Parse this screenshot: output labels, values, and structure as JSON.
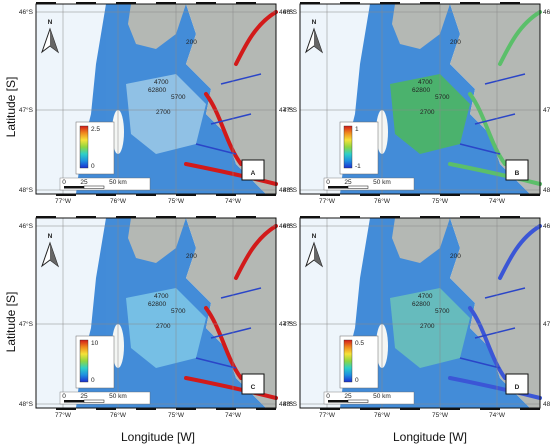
{
  "figure": {
    "y_axis_label": "Latitude [S]",
    "x_axis_label": "Longitude [W]"
  },
  "axes": {
    "lat_ticks": [
      "46°S",
      "47°S",
      "48°S"
    ],
    "lon_ticks": [
      "77°W",
      "76°W",
      "75°W",
      "74°W"
    ]
  },
  "north_arrow": "N",
  "scalebar": [
    "0",
    "25",
    "50 km"
  ],
  "contour_labels": [
    "200",
    "4700",
    "62800",
    "5700",
    "2700"
  ],
  "panels": [
    {
      "id": "A",
      "label": "A",
      "colorbar_max": "2.5",
      "colorbar_min": "0",
      "colormap": "jet",
      "colors": {
        "offshore": "#2f7fd4",
        "coast": "#9ecae8",
        "fjord": "#d21a1a"
      }
    },
    {
      "id": "B",
      "label": "B",
      "colorbar_max": "1",
      "colorbar_min": "-1",
      "colormap": "jet",
      "colors": {
        "offshore": "#2f7fd4",
        "coast": "#4cb85a",
        "fjord": "#5bbf6a"
      }
    },
    {
      "id": "C",
      "label": "C",
      "colorbar_max": "10",
      "colorbar_min": "0",
      "colormap": "jet",
      "colors": {
        "offshore": "#2f7fd4",
        "coast": "#7fc8e8",
        "fjord": "#d21a1a"
      }
    },
    {
      "id": "D",
      "label": "D",
      "colorbar_max": "0.5",
      "colorbar_min": "0",
      "colormap": "jet",
      "colors": {
        "offshore": "#2f7fd4",
        "coast": "#6cc3b9",
        "fjord": "#3b56d6"
      }
    }
  ]
}
